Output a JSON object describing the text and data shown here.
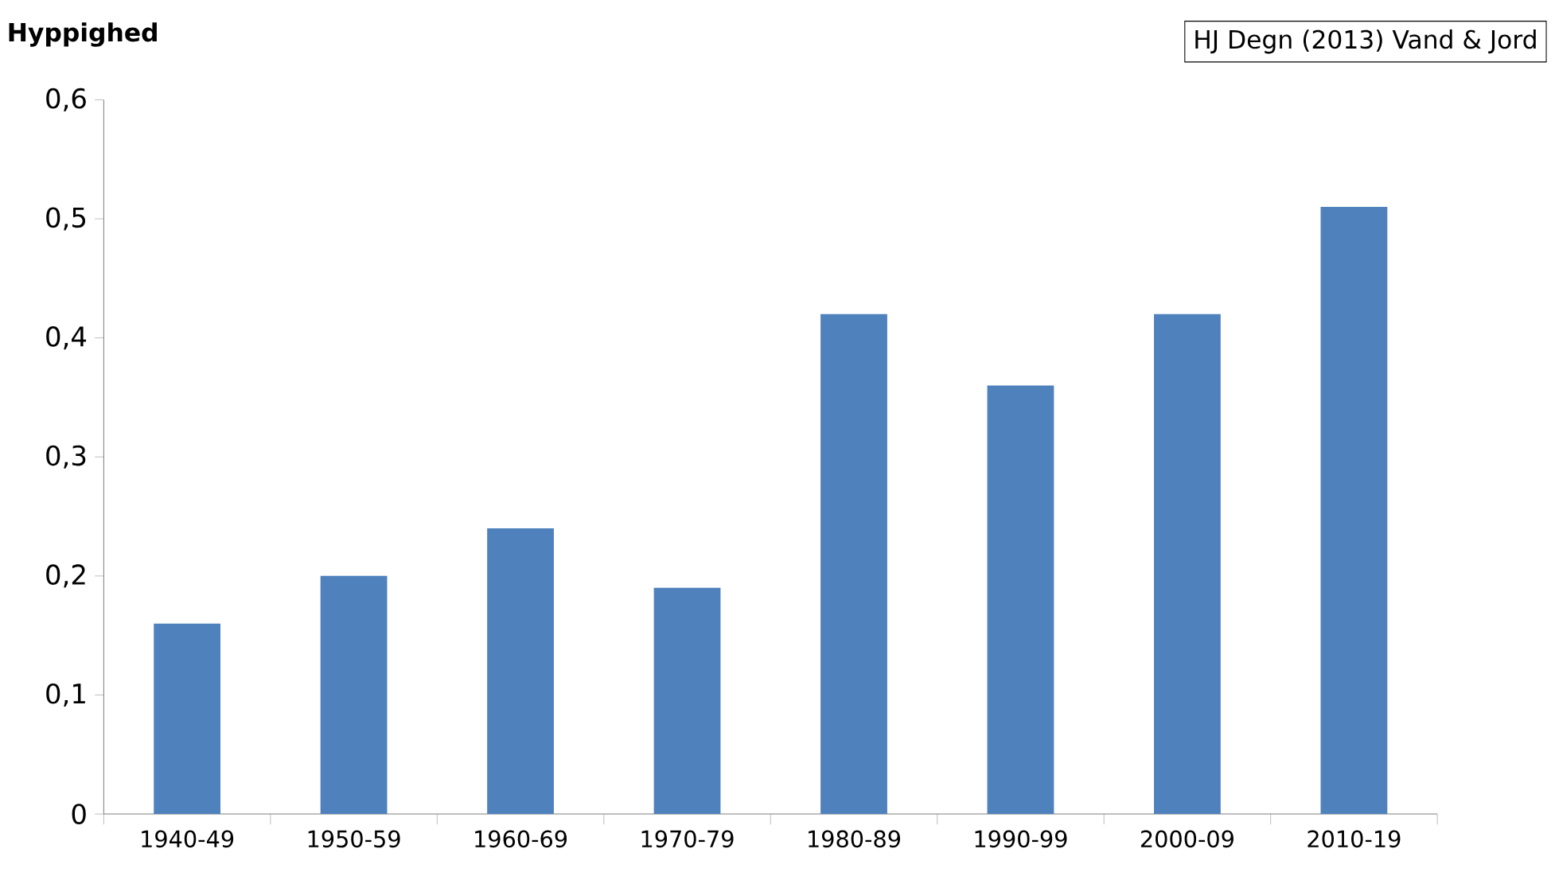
{
  "chart_data": {
    "type": "bar",
    "ylabel": "Hyppighed",
    "annotations": [
      "HJ Degn (2013) Vand & Jord"
    ],
    "categories": [
      "1940-49",
      "1950-59",
      "1960-69",
      "1970-79",
      "1980-89",
      "1990-99",
      "2000-09",
      "2010-19"
    ],
    "values": [
      0.16,
      0.2,
      0.24,
      0.19,
      0.42,
      0.36,
      0.42,
      0.51
    ],
    "color": "#4f81bd",
    "ylim": [
      0,
      0.6
    ],
    "yticks": [
      0,
      {
        "value": 0.1,
        "label": "0,1"
      },
      {
        "value": 0.2,
        "label": "0,2"
      },
      {
        "value": 0.3,
        "label": "0,3"
      },
      {
        "value": 0.4,
        "label": "0,4"
      },
      {
        "value": 0.5,
        "label": "0,5"
      },
      {
        "value": 0.6,
        "label": "0,6"
      }
    ],
    "grid": false
  }
}
